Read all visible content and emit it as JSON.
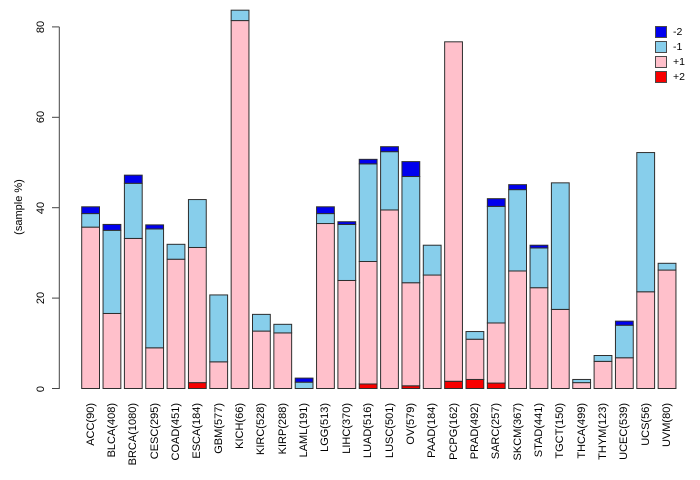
{
  "chart_data": {
    "type": "bar",
    "stacked": true,
    "title": "",
    "xlabel": "",
    "ylabel": "(sample %)",
    "ylim": [
      0,
      80
    ],
    "yticks": [
      0,
      20,
      40,
      60,
      80
    ],
    "grid": false,
    "legend_position": "top-right",
    "background_color": "#ffffff",
    "axis_color": "#444444",
    "bar_border_color": "#2e2e2e",
    "categories": [
      "ACC(90)",
      "BLCA(408)",
      "BRCA(1080)",
      "CESC(295)",
      "COAD(451)",
      "ESCA(184)",
      "GBM(577)",
      "KICH(66)",
      "KIRC(528)",
      "KIRP(288)",
      "LAML(191)",
      "LGG(513)",
      "LIHC(370)",
      "LUAD(516)",
      "LUSC(501)",
      "OV(579)",
      "PAAD(184)",
      "PCPG(162)",
      "PRAD(492)",
      "SARC(257)",
      "SKCM(367)",
      "STAD(441)",
      "TGCT(150)",
      "THCA(499)",
      "THYM(123)",
      "UCEC(539)",
      "UCS(56)",
      "UVM(80)"
    ],
    "series": [
      {
        "name": "-2",
        "color": "#0000ee",
        "values": [
          1.5,
          1.3,
          1.8,
          0.9,
          0,
          0,
          0,
          0,
          0,
          0,
          0.9,
          1.5,
          0.6,
          1.0,
          1.1,
          3.3,
          0,
          0,
          0,
          1.7,
          1.1,
          0.6,
          0,
          0,
          0,
          0.9,
          0,
          0
        ]
      },
      {
        "name": "-1",
        "color": "#87ceeb",
        "values": [
          3.0,
          18.4,
          12.2,
          26.3,
          3.3,
          10.6,
          14.8,
          2.3,
          3.7,
          1.9,
          1.4,
          2.2,
          12.4,
          21.6,
          12.9,
          23.5,
          6.6,
          0,
          1.7,
          25.8,
          18.0,
          8.8,
          28.0,
          0.7,
          1.3,
          7.2,
          30.8,
          1.5
        ]
      },
      {
        "name": "+1",
        "color": "#ffc0cb",
        "values": [
          35.7,
          16.6,
          33.2,
          9.0,
          28.6,
          29.9,
          5.9,
          81.4,
          12.7,
          12.3,
          0,
          36.5,
          23.9,
          27.1,
          39.5,
          22.8,
          25.1,
          75.1,
          8.9,
          13.3,
          26.0,
          22.3,
          17.5,
          1.3,
          6.0,
          6.8,
          21.4,
          26.2
        ]
      },
      {
        "name": "+2",
        "color": "#f80000",
        "values": [
          0,
          0,
          0,
          0,
          0,
          1.3,
          0,
          0,
          0,
          0,
          0,
          0,
          0,
          1.0,
          0,
          0.6,
          0,
          1.6,
          2.0,
          1.2,
          0,
          0,
          0,
          0,
          0,
          0,
          0,
          0
        ]
      }
    ],
    "stack_order_bottom_to_top": [
      "+2",
      "+1",
      "-1",
      "-2"
    ]
  }
}
